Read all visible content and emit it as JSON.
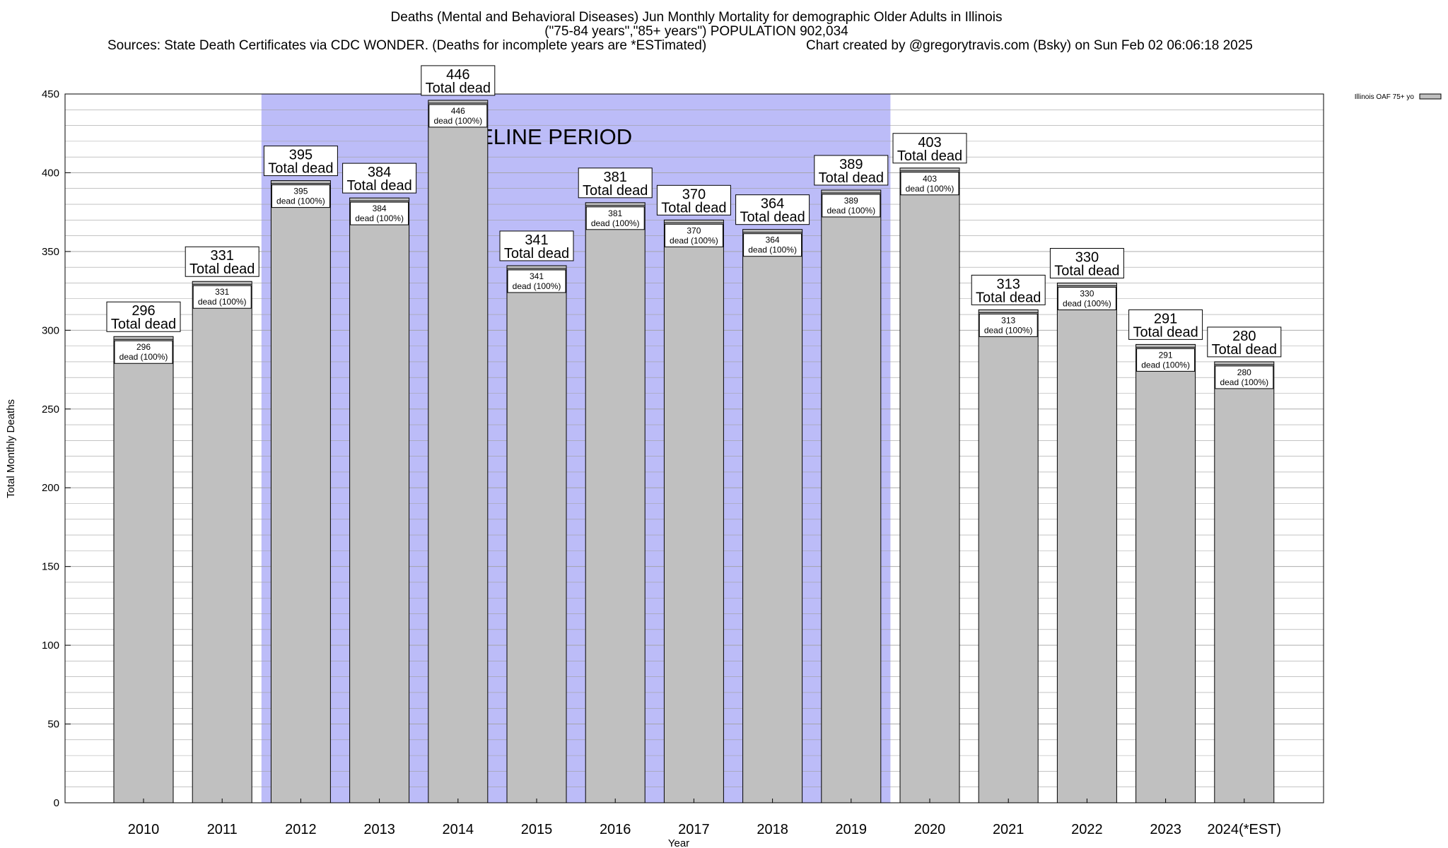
{
  "chart_data": {
    "type": "bar",
    "title": "Deaths (Mental and Behavioral Diseases) Jun Monthly Mortality for demographic Older Adults in Illinois",
    "subtitle": "(\"75-84 years\",\"85+ years\") POPULATION 902,034",
    "sources": "Sources: State Death Certificates via CDC WONDER. (Deaths for incomplete years are *ESTimated)",
    "credit": "Chart created by @gregorytravis.com (Bsky) on Sun Feb 02 06:06:18 2025",
    "xlabel": "Year",
    "ylabel": "Total Monthly Deaths",
    "ylim": [
      0,
      450
    ],
    "yticks": [
      0,
      50,
      100,
      150,
      200,
      250,
      300,
      350,
      400,
      450
    ],
    "categories": [
      "2010",
      "2011",
      "2012",
      "2013",
      "2014",
      "2015",
      "2016",
      "2017",
      "2018",
      "2019",
      "2020",
      "2021",
      "2022",
      "2023",
      "2024(*EST)"
    ],
    "series": [
      {
        "name": "Illinois OAF 75+ yo",
        "values": [
          296,
          331,
          395,
          384,
          446,
          341,
          381,
          370,
          364,
          389,
          403,
          313,
          330,
          291,
          280
        ]
      }
    ],
    "top_label_suffix": "Total dead",
    "inner_label_suffix": "dead (100%)",
    "baseline": {
      "label": "BASELINE PERIOD",
      "from": "2012",
      "to": "2019",
      "color": "#bcbcf8"
    },
    "bar_color": "#c0c0c0",
    "grid": true,
    "legend_position": "top-right"
  }
}
